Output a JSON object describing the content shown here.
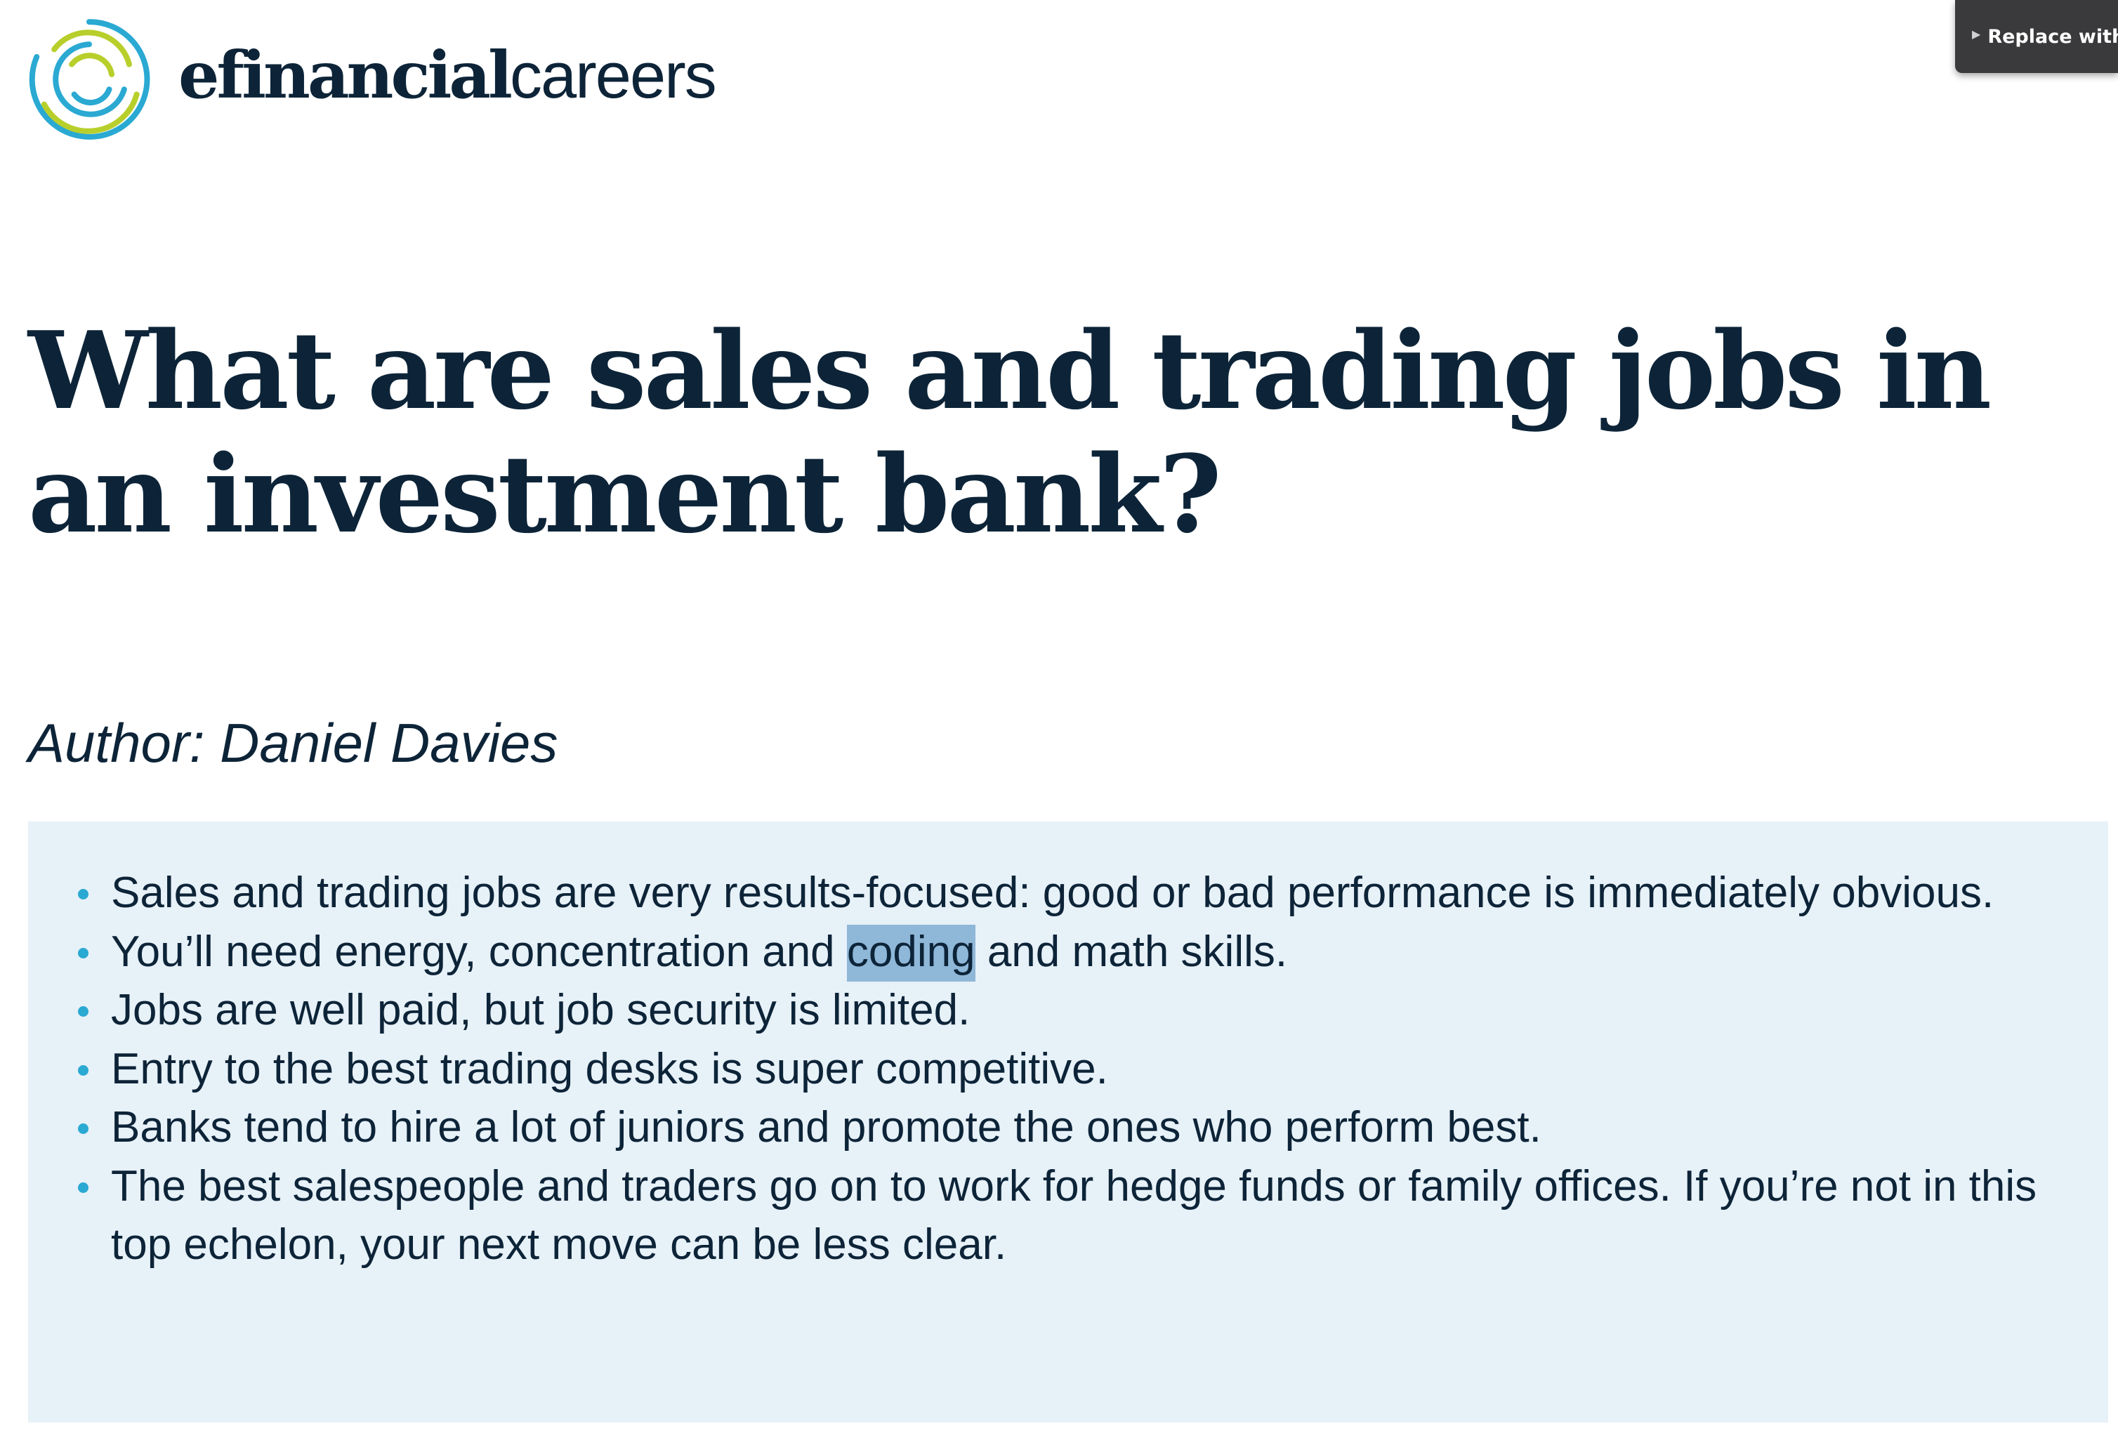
{
  "brand": {
    "name_bold": "efinancial",
    "name_light": "careers",
    "icon": "swirl-logo-icon",
    "colors": {
      "navy": "#0d2438",
      "blue": "#2aa9d2",
      "green": "#b8cf2b"
    }
  },
  "tooltip": {
    "label": "Replace with",
    "icon": "disclosure-triangle-icon"
  },
  "article": {
    "title": "What are sales and trading jobs in an investment bank?",
    "author": "Author: Daniel Davies",
    "key_points": [
      {
        "text": "Sales and trading jobs are very results-focused: good or bad performance is immediately obvious."
      },
      {
        "before": "You’ll need energy, concentration and ",
        "selected": "coding",
        "after": " and math skills."
      },
      {
        "text": "Jobs are well paid, but job security is limited."
      },
      {
        "text": "Entry to the best trading desks is super competitive."
      },
      {
        "text": "Banks tend to hire a lot of juniors and promote the ones who perform best."
      },
      {
        "text": "The best salespeople and traders go on to work for hedge funds or family offices. If you’re not in this top echelon, your next move can be less clear."
      }
    ]
  },
  "colors": {
    "keypoints_bg": "#e7f1f8",
    "selection": "#8fb7d8",
    "bullet": "#2aa9d2",
    "tooltip_bg": "#3a3a3c"
  }
}
